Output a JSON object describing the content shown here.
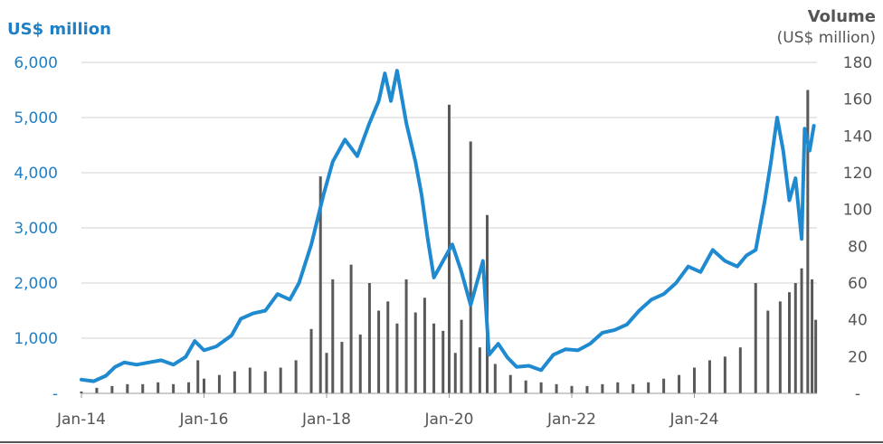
{
  "chart_data": {
    "type": "line",
    "left_axis": {
      "label": "US$ million",
      "ylim": [
        0,
        6000
      ],
      "ticks": [
        "-",
        "1,000",
        "2,000",
        "3,000",
        "4,000",
        "5,000",
        "6,000"
      ],
      "tick_values": [
        0,
        1000,
        2000,
        3000,
        4000,
        5000,
        6000
      ]
    },
    "right_axis": {
      "label_line1": "Volume",
      "label_line2": "(US$ million)",
      "ylim": [
        0,
        180
      ],
      "ticks": [
        "-",
        "20",
        "40",
        "60",
        "80",
        "100",
        "120",
        "140",
        "160",
        "180"
      ],
      "tick_values": [
        0,
        20,
        40,
        60,
        80,
        100,
        120,
        140,
        160,
        180
      ]
    },
    "x_ticks": [
      "Jan-14",
      "Jan-16",
      "Jan-18",
      "Jan-20",
      "Jan-22",
      "Jan-24"
    ],
    "x_tick_values": [
      2014,
      2016,
      2018,
      2020,
      2022,
      2024
    ],
    "xlim": [
      2014.0,
      2026.0
    ],
    "grid": true,
    "series": [
      {
        "kind": "line",
        "axis": "left",
        "color": "#1f8ad0",
        "points": [
          [
            2014.0,
            250
          ],
          [
            2014.2,
            220
          ],
          [
            2014.4,
            320
          ],
          [
            2014.55,
            480
          ],
          [
            2014.7,
            560
          ],
          [
            2014.9,
            520
          ],
          [
            2015.1,
            560
          ],
          [
            2015.3,
            600
          ],
          [
            2015.5,
            520
          ],
          [
            2015.7,
            660
          ],
          [
            2015.85,
            950
          ],
          [
            2016.0,
            780
          ],
          [
            2016.2,
            850
          ],
          [
            2016.45,
            1050
          ],
          [
            2016.6,
            1350
          ],
          [
            2016.8,
            1450
          ],
          [
            2017.0,
            1500
          ],
          [
            2017.2,
            1800
          ],
          [
            2017.4,
            1700
          ],
          [
            2017.55,
            2000
          ],
          [
            2017.75,
            2700
          ],
          [
            2017.95,
            3600
          ],
          [
            2018.1,
            4200
          ],
          [
            2018.3,
            4600
          ],
          [
            2018.5,
            4300
          ],
          [
            2018.7,
            4900
          ],
          [
            2018.85,
            5300
          ],
          [
            2018.95,
            5800
          ],
          [
            2019.05,
            5300
          ],
          [
            2019.15,
            5850
          ],
          [
            2019.3,
            4900
          ],
          [
            2019.45,
            4200
          ],
          [
            2019.55,
            3600
          ],
          [
            2019.65,
            2800
          ],
          [
            2019.75,
            2100
          ],
          [
            2019.9,
            2400
          ],
          [
            2020.05,
            2700
          ],
          [
            2020.2,
            2200
          ],
          [
            2020.35,
            1600
          ],
          [
            2020.55,
            2400
          ],
          [
            2020.65,
            700
          ],
          [
            2020.8,
            900
          ],
          [
            2020.95,
            650
          ],
          [
            2021.1,
            480
          ],
          [
            2021.3,
            500
          ],
          [
            2021.5,
            420
          ],
          [
            2021.7,
            700
          ],
          [
            2021.9,
            800
          ],
          [
            2022.1,
            780
          ],
          [
            2022.3,
            900
          ],
          [
            2022.5,
            1100
          ],
          [
            2022.7,
            1150
          ],
          [
            2022.9,
            1250
          ],
          [
            2023.1,
            1500
          ],
          [
            2023.3,
            1700
          ],
          [
            2023.5,
            1800
          ],
          [
            2023.7,
            2000
          ],
          [
            2023.9,
            2300
          ],
          [
            2024.1,
            2200
          ],
          [
            2024.3,
            2600
          ],
          [
            2024.5,
            2400
          ],
          [
            2024.7,
            2300
          ],
          [
            2024.85,
            2500
          ],
          [
            2025.0,
            2600
          ],
          [
            2025.15,
            3500
          ],
          [
            2025.25,
            4200
          ],
          [
            2025.35,
            5000
          ],
          [
            2025.45,
            4400
          ],
          [
            2025.55,
            3500
          ],
          [
            2025.65,
            3900
          ],
          [
            2025.75,
            2800
          ],
          [
            2025.8,
            4800
          ],
          [
            2025.88,
            4400
          ],
          [
            2025.95,
            4850
          ]
        ]
      },
      {
        "kind": "bar",
        "axis": "right",
        "color": "#595959",
        "name": "Volume",
        "points": [
          [
            2014.0,
            1
          ],
          [
            2014.25,
            3
          ],
          [
            2014.5,
            4
          ],
          [
            2014.75,
            5
          ],
          [
            2015.0,
            5
          ],
          [
            2015.25,
            6
          ],
          [
            2015.5,
            5
          ],
          [
            2015.75,
            6
          ],
          [
            2015.9,
            18
          ],
          [
            2016.0,
            8
          ],
          [
            2016.25,
            10
          ],
          [
            2016.5,
            12
          ],
          [
            2016.75,
            14
          ],
          [
            2017.0,
            12
          ],
          [
            2017.25,
            14
          ],
          [
            2017.5,
            18
          ],
          [
            2017.75,
            35
          ],
          [
            2017.9,
            118
          ],
          [
            2018.0,
            22
          ],
          [
            2018.1,
            62
          ],
          [
            2018.25,
            28
          ],
          [
            2018.4,
            70
          ],
          [
            2018.55,
            32
          ],
          [
            2018.7,
            60
          ],
          [
            2018.85,
            45
          ],
          [
            2019.0,
            50
          ],
          [
            2019.15,
            38
          ],
          [
            2019.3,
            62
          ],
          [
            2019.45,
            44
          ],
          [
            2019.6,
            52
          ],
          [
            2019.75,
            38
          ],
          [
            2019.9,
            34
          ],
          [
            2020.0,
            157
          ],
          [
            2020.1,
            22
          ],
          [
            2020.2,
            40
          ],
          [
            2020.35,
            137
          ],
          [
            2020.5,
            25
          ],
          [
            2020.62,
            97
          ],
          [
            2020.75,
            16
          ],
          [
            2021.0,
            10
          ],
          [
            2021.25,
            7
          ],
          [
            2021.5,
            6
          ],
          [
            2021.75,
            5
          ],
          [
            2022.0,
            4
          ],
          [
            2022.25,
            4
          ],
          [
            2022.5,
            5
          ],
          [
            2022.75,
            6
          ],
          [
            2023.0,
            5
          ],
          [
            2023.25,
            6
          ],
          [
            2023.5,
            8
          ],
          [
            2023.75,
            10
          ],
          [
            2024.0,
            14
          ],
          [
            2024.25,
            18
          ],
          [
            2024.5,
            20
          ],
          [
            2024.75,
            25
          ],
          [
            2025.0,
            60
          ],
          [
            2025.2,
            45
          ],
          [
            2025.4,
            50
          ],
          [
            2025.55,
            55
          ],
          [
            2025.65,
            60
          ],
          [
            2025.75,
            68
          ],
          [
            2025.85,
            165
          ],
          [
            2025.92,
            62
          ],
          [
            2025.98,
            40
          ]
        ]
      }
    ]
  }
}
